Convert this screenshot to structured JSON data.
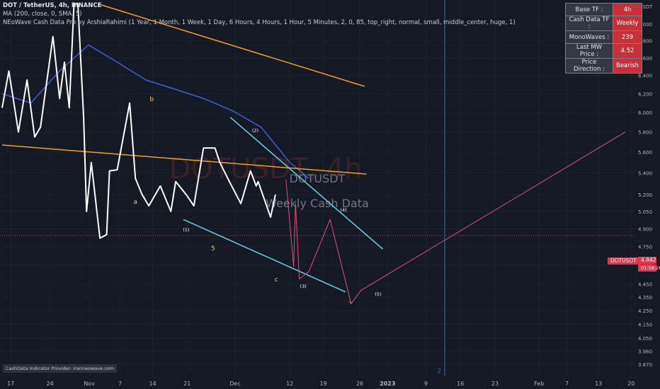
{
  "header": {
    "symbol_line": "DOT / TetherUS, 4h, BINANCE",
    "ma_line": "MA (200, close, 0, SMA, 5)",
    "indicator_line": "NEoWave Cash Data Pro by ArshiaRahimi (1 Year, 1 Month, 1 Week, 1 Day, 6 Hours, 4 Hours, 1 Hour, 5 Minutes, 2, 0, 85, top_right, normal, small, middle_center, huge, 1)"
  },
  "info_table": [
    {
      "label": "Base TF :",
      "value": "4h"
    },
    {
      "label": "Cash Data TF :",
      "value": "Weekly"
    },
    {
      "label": "MonoWaves :",
      "value": "239"
    },
    {
      "label": "Last MW Price :",
      "value": "4.52"
    },
    {
      "label": "Price Direction :",
      "value": "Bearish"
    }
  ],
  "watermark": {
    "symbol": "DOTUSDT, 4h",
    "sub_symbol": "DOTUSDT",
    "sub_text": "Weekly Cash Data"
  },
  "price_tag": {
    "symbol": "DOTUSDT",
    "price": "4.842",
    "countdown": "01:59:26"
  },
  "footer": {
    "provider": "CashData Indicator Provider: iranneowave.com"
  },
  "colors": {
    "background": "#151924",
    "zigzag": "#ffffff",
    "projection": "#e0507a",
    "ma": "#3d5fd6",
    "trend_orange": "#f0a020",
    "channel_cyan": "#5fd4e8",
    "label_yellow": "#e8d44a"
  },
  "chart_data": {
    "type": "line",
    "y_scale": "log",
    "y_unit": "USDT",
    "ylim": [
      3.85,
      7.25
    ],
    "y_ticks": [
      "7.000",
      "6.800",
      "6.600",
      "6.400",
      "6.200",
      "6.000",
      "5.800",
      "5.600",
      "5.400",
      "5.200",
      "5.050",
      "4.900",
      "4.750",
      "4.600",
      "4.450",
      "4.350",
      "4.250",
      "4.150",
      "4.050",
      "3.960",
      "3.870"
    ],
    "x_ticks": [
      "17",
      "24",
      "Nov",
      "7",
      "14",
      "21",
      "Dec",
      "12",
      "19",
      "26",
      "2023",
      "9",
      "16",
      "23",
      "Feb",
      "7",
      "13",
      "20"
    ],
    "series": [
      {
        "id": "zigzag",
        "x": [
          0,
          0.7,
          1.7,
          2.6,
          3.4,
          4.0,
          5.3,
          6.0,
          6.5,
          7.0,
          7.5,
          7.9,
          8.5,
          8.8,
          9.3,
          10.2,
          10.9,
          11.2,
          12.0,
          13.3,
          13.9,
          14.6,
          15.3,
          16.5,
          17.6,
          18.1,
          19.2,
          20.0,
          21.0,
          22.2,
          22.7,
          23.7,
          24.9,
          25.9,
          26.5,
          26.7,
          28.0,
          28.5
        ],
        "y": [
          6.05,
          6.45,
          5.8,
          6.35,
          5.75,
          5.85,
          6.85,
          6.15,
          6.55,
          6.05,
          7.25,
          7.25,
          5.95,
          5.05,
          5.5,
          4.82,
          4.85,
          5.42,
          5.43,
          6.1,
          5.35,
          5.2,
          5.1,
          5.28,
          5.05,
          5.32,
          5.2,
          5.1,
          5.64,
          5.64,
          5.5,
          5.32,
          5.12,
          5.42,
          5.28,
          5.32,
          5.0,
          5.2
        ]
      },
      {
        "id": "projection",
        "x": [
          29.6,
          30.4,
          30.6,
          31.0,
          32.0,
          34.2,
          36.4,
          37.4,
          65.0
        ],
        "y": [
          5.34,
          4.59,
          5.12,
          4.49,
          4.55,
          4.98,
          4.3,
          4.4,
          5.8
        ]
      },
      {
        "id": "ma_200",
        "x": [
          0,
          3,
          6,
          9,
          12,
          15,
          18,
          21,
          24,
          27,
          30,
          32
        ],
        "y": [
          6.2,
          6.1,
          6.45,
          6.75,
          6.55,
          6.35,
          6.25,
          6.15,
          6.02,
          5.85,
          5.5,
          5.35
        ]
      },
      {
        "id": "orange_upper",
        "x": [
          10,
          37.8
        ],
        "y": [
          7.25,
          6.28
        ]
      },
      {
        "id": "orange_lower",
        "x": [
          0,
          38.0
        ],
        "y": [
          5.67,
          5.39
        ]
      },
      {
        "id": "cyan_upper",
        "x": [
          23.8,
          39.7
        ],
        "y": [
          5.95,
          4.73
        ]
      },
      {
        "id": "cyan_lower",
        "x": [
          18.9,
          35.8
        ],
        "y": [
          4.98,
          4.39
        ]
      }
    ],
    "current_price": 4.842,
    "annotations": [
      {
        "text": "a",
        "x": 13.9,
        "y": 5.12,
        "color": "#e8d44a"
      },
      {
        "text": "b",
        "x": 15.6,
        "y": 6.12,
        "color": "#e8d44a"
      },
      {
        "text": "c",
        "x": 28.6,
        "y": 4.47,
        "color": "#e8d44a"
      },
      {
        "text": "5",
        "x": 22.0,
        "y": 4.72,
        "color": "#e8d44a"
      },
      {
        "text": "(1)",
        "x": 19.2,
        "y": 4.88,
        "color": "#ffffff"
      },
      {
        "text": "(2)",
        "x": 26.4,
        "y": 5.8,
        "color": "#ffffff"
      },
      {
        "text": "(3)",
        "x": 31.4,
        "y": 4.42,
        "color": "#ffffff"
      },
      {
        "text": "(4)",
        "x": 35.6,
        "y": 5.05,
        "color": "#ffffff"
      },
      {
        "text": "(5)",
        "x": 39.2,
        "y": 4.36,
        "color": "#ffffff"
      },
      {
        "text": "2",
        "x": 45.6,
        "y": 3.81,
        "color": "#3d5fd6"
      }
    ]
  }
}
